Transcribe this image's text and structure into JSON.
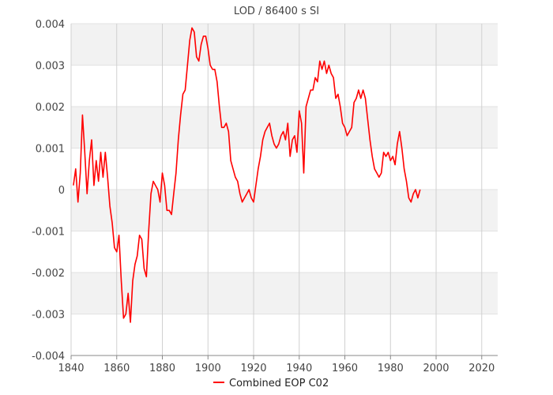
{
  "chart_data": {
    "type": "line",
    "title": "LOD / 86400 s SI",
    "xlabel": "",
    "ylabel": "",
    "xlim": [
      1840,
      2027
    ],
    "ylim": [
      -0.004,
      0.004
    ],
    "x_ticks": [
      "1840",
      "1860",
      "1880",
      "1900",
      "1920",
      "1940",
      "1960",
      "1980",
      "2000",
      "2020"
    ],
    "y_ticks": [
      "0.004",
      "0.003",
      "0.002",
      "0.001",
      "0",
      "-0.001",
      "-0.002",
      "-0.003",
      "-0.004"
    ],
    "grid": true,
    "banded_background": true,
    "legend_position": "bottom-center",
    "series": [
      {
        "name": "Combined EOP C02",
        "color": "#ff0000",
        "points": [
          [
            1841,
            0.0001
          ],
          [
            1842,
            0.0005
          ],
          [
            1843,
            -0.0003
          ],
          [
            1844,
            0.0004
          ],
          [
            1845,
            0.0018
          ],
          [
            1846,
            0.0009
          ],
          [
            1847,
            -0.0001
          ],
          [
            1848,
            0.0007
          ],
          [
            1849,
            0.0012
          ],
          [
            1850,
            0.0001
          ],
          [
            1851,
            0.0007
          ],
          [
            1852,
            0.0002
          ],
          [
            1853,
            0.0009
          ],
          [
            1854,
            0.0003
          ],
          [
            1855,
            0.0009
          ],
          [
            1856,
            0.0003
          ],
          [
            1857,
            -0.0004
          ],
          [
            1858,
            -0.0008
          ],
          [
            1859,
            -0.0014
          ],
          [
            1860,
            -0.0015
          ],
          [
            1861,
            -0.0011
          ],
          [
            1862,
            -0.0022
          ],
          [
            1863,
            -0.0031
          ],
          [
            1864,
            -0.003
          ],
          [
            1865,
            -0.0025
          ],
          [
            1866,
            -0.0032
          ],
          [
            1867,
            -0.0022
          ],
          [
            1868,
            -0.0018
          ],
          [
            1869,
            -0.0016
          ],
          [
            1870,
            -0.0011
          ],
          [
            1871,
            -0.0012
          ],
          [
            1872,
            -0.0019
          ],
          [
            1873,
            -0.0021
          ],
          [
            1874,
            -0.001
          ],
          [
            1875,
            -0.0001
          ],
          [
            1876,
            0.0002
          ],
          [
            1877,
            0.0001
          ],
          [
            1878,
            -0.0
          ],
          [
            1879,
            -0.0003
          ],
          [
            1880,
            0.0004
          ],
          [
            1881,
            0.0001
          ],
          [
            1882,
            -0.0005
          ],
          [
            1883,
            -0.0005
          ],
          [
            1884,
            -0.0006
          ],
          [
            1885,
            -0.0001
          ],
          [
            1886,
            0.0004
          ],
          [
            1887,
            0.0012
          ],
          [
            1888,
            0.0018
          ],
          [
            1889,
            0.0023
          ],
          [
            1890,
            0.0024
          ],
          [
            1891,
            0.003
          ],
          [
            1892,
            0.0036
          ],
          [
            1893,
            0.0039
          ],
          [
            1894,
            0.0038
          ],
          [
            1895,
            0.0032
          ],
          [
            1896,
            0.0031
          ],
          [
            1897,
            0.0035
          ],
          [
            1898,
            0.0037
          ],
          [
            1899,
            0.0037
          ],
          [
            1900,
            0.0034
          ],
          [
            1901,
            0.003
          ],
          [
            1902,
            0.0029
          ],
          [
            1903,
            0.0029
          ],
          [
            1904,
            0.0026
          ],
          [
            1905,
            0.002
          ],
          [
            1906,
            0.0015
          ],
          [
            1907,
            0.0015
          ],
          [
            1908,
            0.0016
          ],
          [
            1909,
            0.0014
          ],
          [
            1910,
            0.0007
          ],
          [
            1911,
            0.0005
          ],
          [
            1912,
            0.0003
          ],
          [
            1913,
            0.0002
          ],
          [
            1914,
            -0.0001
          ],
          [
            1915,
            -0.0003
          ],
          [
            1916,
            -0.0002
          ],
          [
            1917,
            -0.0001
          ],
          [
            1918,
            -0.0
          ],
          [
            1919,
            -0.0002
          ],
          [
            1920,
            -0.0003
          ],
          [
            1921,
            0.0001
          ],
          [
            1922,
            0.0005
          ],
          [
            1923,
            0.0008
          ],
          [
            1924,
            0.0012
          ],
          [
            1925,
            0.0014
          ],
          [
            1926,
            0.0015
          ],
          [
            1927,
            0.0016
          ],
          [
            1928,
            0.0013
          ],
          [
            1929,
            0.0011
          ],
          [
            1930,
            0.001
          ],
          [
            1931,
            0.0011
          ],
          [
            1932,
            0.0013
          ],
          [
            1933,
            0.0014
          ],
          [
            1934,
            0.0012
          ],
          [
            1935,
            0.0016
          ],
          [
            1936,
            0.0008
          ],
          [
            1937,
            0.0012
          ],
          [
            1938,
            0.0013
          ],
          [
            1939,
            0.0009
          ],
          [
            1940,
            0.0019
          ],
          [
            1941,
            0.0016
          ],
          [
            1942,
            0.0004
          ],
          [
            1943,
            0.002
          ],
          [
            1944,
            0.0022
          ],
          [
            1945,
            0.0024
          ],
          [
            1946,
            0.0024
          ],
          [
            1947,
            0.0027
          ],
          [
            1948,
            0.0026
          ],
          [
            1949,
            0.0031
          ],
          [
            1950,
            0.0029
          ],
          [
            1951,
            0.0031
          ],
          [
            1952,
            0.0028
          ],
          [
            1953,
            0.003
          ],
          [
            1954,
            0.0028
          ],
          [
            1955,
            0.0027
          ],
          [
            1956,
            0.0022
          ],
          [
            1957,
            0.0023
          ],
          [
            1958,
            0.002
          ],
          [
            1959,
            0.0016
          ],
          [
            1960,
            0.0015
          ],
          [
            1961,
            0.0013
          ],
          [
            1962,
            0.0014
          ],
          [
            1963,
            0.0015
          ],
          [
            1964,
            0.0021
          ],
          [
            1965,
            0.0022
          ],
          [
            1966,
            0.0024
          ],
          [
            1967,
            0.0022
          ],
          [
            1968,
            0.0024
          ],
          [
            1969,
            0.0022
          ],
          [
            1970,
            0.0017
          ],
          [
            1971,
            0.0012
          ],
          [
            1972,
            0.0008
          ],
          [
            1973,
            0.0005
          ],
          [
            1974,
            0.0004
          ],
          [
            1975,
            0.0003
          ],
          [
            1976,
            0.0004
          ],
          [
            1977,
            0.0009
          ],
          [
            1978,
            0.0008
          ],
          [
            1979,
            0.0009
          ],
          [
            1980,
            0.0007
          ],
          [
            1981,
            0.0008
          ],
          [
            1982,
            0.0006
          ],
          [
            1983,
            0.0011
          ],
          [
            1984,
            0.0014
          ],
          [
            1985,
            0.001
          ],
          [
            1986,
            0.0005
          ],
          [
            1987,
            0.0002
          ],
          [
            1988,
            -0.0002
          ],
          [
            1989,
            -0.0003
          ],
          [
            1990,
            -0.0001
          ],
          [
            1991,
            -0.0
          ],
          [
            1992,
            -0.0002
          ],
          [
            1993,
            0.0
          ]
        ]
      }
    ]
  }
}
